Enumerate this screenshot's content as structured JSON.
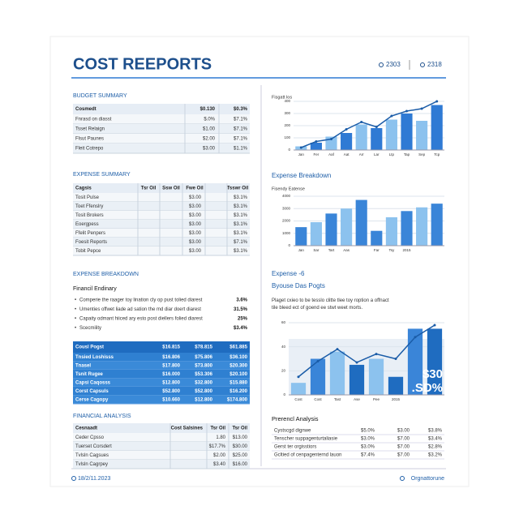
{
  "header": {
    "title": "COST REEPORTS",
    "meta": [
      "2303",
      "2318"
    ]
  },
  "budget_summary": {
    "title": "BUDGET SUMMARY",
    "header": [
      "Cosmedt",
      "$0.130",
      "$0.3%"
    ],
    "rows": [
      [
        "Fnrasd on diasst",
        "$.0%",
        "$7.1%"
      ],
      [
        "Tsset Relaign",
        "$1.00",
        "$7.1%"
      ],
      [
        "Flsut Paunes",
        "$2.00",
        "$7.1%"
      ],
      [
        "Fleit Cotrepo",
        "$3.00",
        "$1.1%"
      ]
    ]
  },
  "expense_summary": {
    "title": "EXPENSE SUMMARY",
    "header": [
      "Cagsis",
      "Tsr Oil",
      "Ssw Oil",
      "Fwe Oil",
      "Tsswr Oil"
    ],
    "rows": [
      [
        "Tosit Pulse",
        "$3.00",
        "$3.1%"
      ],
      [
        "Toet Ffenslry",
        "$3.00",
        "$3.1%"
      ],
      [
        "Tosit Brokers",
        "$3.00",
        "$3.1%"
      ],
      [
        "Eoergpess",
        "$3.00",
        "$3.1%"
      ],
      [
        "Ffelit Penpers",
        "$3.00",
        "$3.1%"
      ],
      [
        "Foesit Reports",
        "$3.00",
        "$7.1%"
      ],
      [
        "Tobit Pepce",
        "$3.00",
        "$3.1%"
      ]
    ]
  },
  "expense_breakdown": {
    "title": "EXPENSE BREAKDOWN",
    "subtitle": "Financil Endinary",
    "items": [
      {
        "text": "Comperie the raager toy lination cly op pust tolied diarest",
        "value": "3.6%"
      },
      {
        "text": "Umenties offwet liade ad sation the md diar doert diarest",
        "value": "31.5%"
      },
      {
        "text": "Capaity odmant hiiced ary esto post diellers folied diarest",
        "value": "25%"
      },
      {
        "text": "Scecmility",
        "value": "$3.4%"
      }
    ]
  },
  "cost_table": {
    "header": [
      "Cousl Pogst",
      "$16.815",
      "$78.815",
      "$61.885"
    ],
    "rows": [
      [
        "Tnsied Loshisss",
        "$16.806",
        "$75.806",
        "$36.100"
      ],
      [
        "Tnasel",
        "$17.800",
        "$73.800",
        "$20.300"
      ],
      [
        "Tsnit Rugee",
        "$16.000",
        "$53.306",
        "$20.100"
      ],
      [
        "Capsi Caqosss",
        "$12.800",
        "$32.800",
        "$15.880"
      ],
      [
        "Corst Capsuls",
        "$52.800",
        "$52.800",
        "$16.200"
      ],
      [
        "Cerse Cagopy",
        "$10.660",
        "$12.800",
        "$174.800"
      ]
    ]
  },
  "financial_analysis": {
    "title": "FINANCIAL ANALYSIS",
    "header": [
      "Cesnaadt",
      "Cost Salsines",
      "Tsr Oil",
      "Tsr Oil"
    ],
    "rows": [
      [
        "Ceder Cpsso",
        "1.80",
        "$13.00"
      ],
      [
        "Tuerset Corsdert",
        "$17.7%",
        "$30.00"
      ],
      [
        "Tvlsln Cagsues",
        "$2.00",
        "$25.00"
      ],
      [
        "Tvlsln Cagrpey",
        "$3.40",
        "$16.00"
      ]
    ]
  },
  "right": {
    "breakdown_title": "Expense Breakdown",
    "section_label": "Expense -6",
    "section_title": "Byouse Das Pogts",
    "paragraph": "Plaget cxieo to be tesslo clitte tlee toy roption a offnact tile bleed ect of goend ee stwt weet morts."
  },
  "analysis": {
    "title": "Prerencl Analysis",
    "rows": [
      [
        "Cystscgd dignwe",
        "$5.0%",
        "$3.00",
        "$3.8%"
      ],
      [
        "Tenscher suppagenturtaliasie",
        "$3.0%",
        "$7.00",
        "$3.4%"
      ],
      [
        "Gerst ter orgisstiors",
        "$3.0%",
        "$7.00",
        "$2.8%"
      ],
      [
        "Gcltied of cenpagenternd lauon",
        "$7.4%",
        "$7.00",
        "$3.2%"
      ]
    ]
  },
  "charts": [
    {
      "title": "Fisgatt los",
      "categories": [
        "Jan",
        "Fer",
        "Aaf",
        "Aat",
        "Arr",
        "Lar",
        "Ltp",
        "Tap",
        "Sep",
        "Tcp"
      ],
      "ylim": [
        0,
        400
      ],
      "yticks": [
        0,
        100,
        200,
        300,
        400
      ],
      "series": [
        {
          "kind": "bar",
          "colors": [
            "#8cc2ee",
            "#2f7ad4",
            "#8cc2ee",
            "#2f7ad4",
            "#8cc2ee",
            "#2f7ad4",
            "#8cc2ee",
            "#2f7ad4",
            "#8cc2ee",
            "#2f7ad4"
          ],
          "values": [
            30,
            60,
            110,
            140,
            210,
            180,
            250,
            300,
            240,
            370
          ]
        },
        {
          "kind": "line",
          "color": "#1a5ca8",
          "values": [
            20,
            70,
            90,
            170,
            230,
            190,
            280,
            320,
            340,
            400
          ]
        }
      ]
    },
    {
      "title": "Fisendy Eatense",
      "categories": [
        "Jan",
        "Sar",
        "Tart",
        "Aas",
        null,
        "Far",
        "Tsy",
        "2015",
        null,
        null
      ],
      "ylim": [
        0,
        4000
      ],
      "yticks": [
        0,
        1000,
        2000,
        3000,
        4000
      ],
      "series": [
        {
          "kind": "bar",
          "colors": [
            "#3a85d8",
            "#8cc2ee",
            "#3a85d8",
            "#8cc2ee",
            "#3a85d8",
            "#3a85d8",
            "#8cc2ee",
            "#3a85d8",
            "#8cc2ee",
            "#3a85d8"
          ],
          "values": [
            1500,
            1900,
            2600,
            3000,
            3700,
            1200,
            2300,
            2800,
            3100,
            3400
          ]
        }
      ]
    },
    {
      "categories": [
        "Cost",
        "Cost",
        "Tast",
        "Ase",
        "Pee",
        "2015",
        null,
        null
      ],
      "ylim": [
        0,
        60
      ],
      "yticks": [
        0,
        20,
        40,
        60
      ],
      "overlay": [
        "$30",
        ".SD%"
      ],
      "series": [
        {
          "kind": "bar",
          "colors": [
            "#8cc2ee",
            "#3a85d8",
            "#8cc2ee",
            "#1f6cc0",
            "#8cc2ee",
            "#1f6cc0",
            "#3a85d8",
            "#1f6cc0"
          ],
          "values": [
            10,
            30,
            36,
            25,
            30,
            15,
            55,
            55
          ]
        },
        {
          "kind": "line",
          "color": "#1a5ca8",
          "values": [
            15,
            28,
            38,
            27,
            34,
            30,
            48,
            58
          ]
        }
      ]
    }
  ],
  "footer": {
    "left": "18/2/11.2023",
    "right": "Orgnattorune"
  }
}
